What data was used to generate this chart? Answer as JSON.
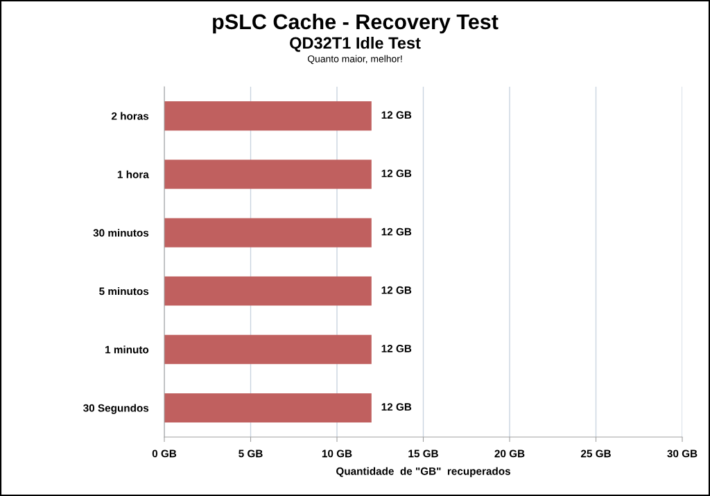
{
  "chart_data": {
    "type": "bar",
    "orientation": "horizontal",
    "title": "pSLC Cache - Recovery Test",
    "subtitle": "QD32T1 Idle Test",
    "annotations": [
      "Quanto maior, melhor!"
    ],
    "xlabel": "Quantidade  de \"GB\"  recuperados",
    "categories": [
      "2 horas",
      "1 hora",
      "30 minutos",
      "5 minutos",
      "1 minuto",
      "30 Segundos"
    ],
    "values": [
      12,
      12,
      12,
      12,
      12,
      12
    ],
    "value_labels": [
      "12 GB",
      "12 GB",
      "12 GB",
      "12 GB",
      "12 GB",
      "12 GB"
    ],
    "color": "#c0605f",
    "xlim": [
      0,
      30
    ],
    "xticks": [
      {
        "value": 0,
        "label": "0 GB"
      },
      {
        "value": 5,
        "label": "5 GB"
      },
      {
        "value": 10,
        "label": "10 GB"
      },
      {
        "value": 15,
        "label": "15 GB"
      },
      {
        "value": 20,
        "label": "20 GB"
      },
      {
        "value": 25,
        "label": "25 GB"
      },
      {
        "value": 30,
        "label": "30 GB"
      }
    ],
    "grid": "x",
    "legend": false
  }
}
